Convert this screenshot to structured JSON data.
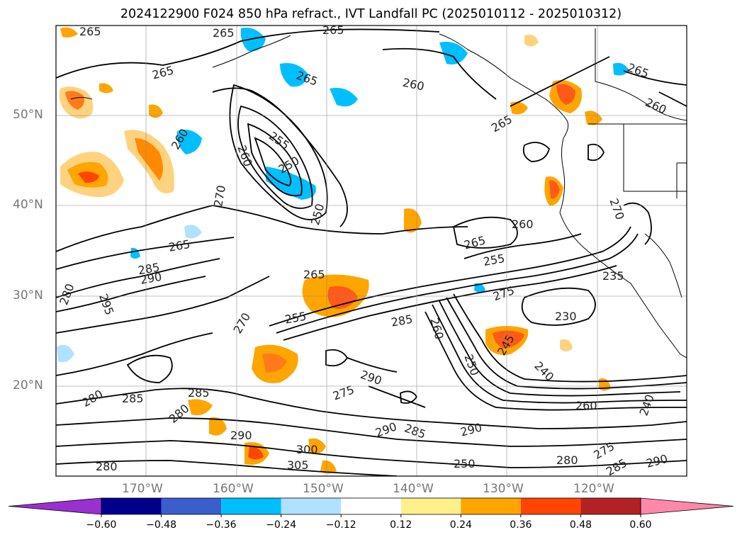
{
  "title": "2024122900 F024 850 hPa refract., IVT Landfall PC (2025010112 - 2025010312)",
  "lat_labels": [
    "50°N",
    "40°N",
    "30°N",
    "20°N"
  ],
  "lon_labels": [
    "170°W",
    "160°W",
    "150°W",
    "140°W",
    "130°W",
    "120°W"
  ],
  "colorbar": {
    "colors": [
      "#9b30d0",
      "#00008b",
      "#3a5fcd",
      "#00bfff",
      "#b0e2ff",
      "#ffffff",
      "#fff08c",
      "#ffa500",
      "#ff4500",
      "#b22222",
      "#ff88aa"
    ],
    "ticks": [
      "−0.60",
      "−0.48",
      "−0.36",
      "−0.24",
      "−0.12",
      "0.12",
      "0.24",
      "0.36",
      "0.48",
      "0.60"
    ]
  },
  "contour_labels": [
    "265",
    "265",
    "265",
    "265",
    "265",
    "260",
    "265",
    "265",
    "260",
    "260",
    "255",
    "250",
    "260",
    "270",
    "250",
    "260",
    "265",
    "265",
    "255",
    "270",
    "280",
    "285",
    "290",
    "295",
    "275",
    "265",
    "270",
    "255",
    "285",
    "260",
    "245",
    "250",
    "230",
    "235",
    "240",
    "260",
    "280",
    "285",
    "280",
    "280",
    "290",
    "285",
    "275",
    "290",
    "285",
    "290",
    "300",
    "305",
    "280",
    "275",
    "285",
    "290",
    "290",
    "250",
    "240"
  ]
}
